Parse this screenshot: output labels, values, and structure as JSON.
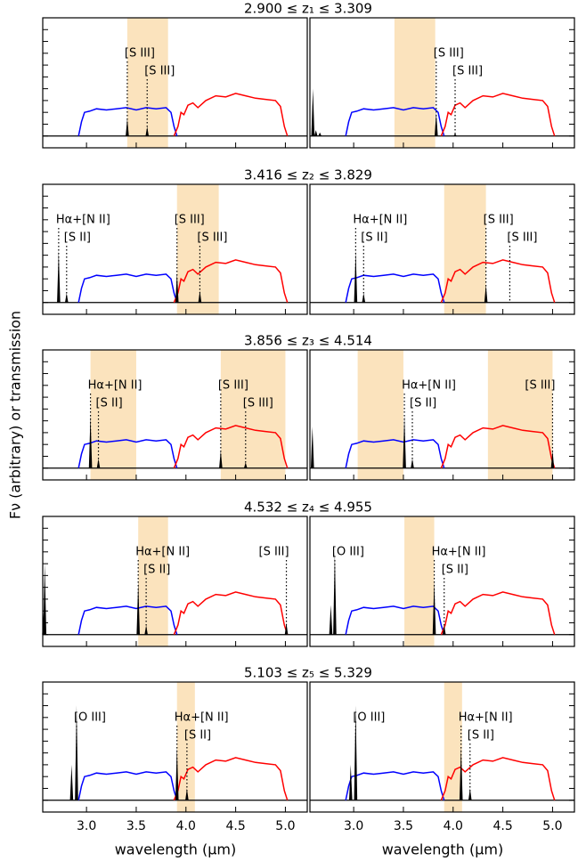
{
  "chart_data": {
    "type": "line",
    "xlabel": "wavelength (μm)",
    "ylabel": "Fν (arbitrary) or transmission",
    "xlim": [
      2.56,
      5.22
    ],
    "ylim": [
      -0.1,
      1.0
    ],
    "xticks": [
      {
        "value": 3,
        "label": "3.0"
      },
      3.5,
      {
        "value": 4,
        "label": "4.0"
      },
      4.5,
      {
        "value": 5,
        "label": "5.0"
      }
    ],
    "yticks": [
      0,
      0.1,
      0.2,
      0.3,
      0.4,
      0.5,
      0.6,
      0.7,
      0.8,
      0.9
    ],
    "band_color": "#fbe3bd",
    "line_color": "#000000",
    "filters": [
      {
        "color": "#0000ff",
        "x": [
          2.92,
          2.95,
          2.98,
          3.03,
          3.1,
          3.2,
          3.3,
          3.4,
          3.5,
          3.6,
          3.7,
          3.8,
          3.85,
          3.88,
          3.91
        ],
        "values": [
          0,
          0.12,
          0.2,
          0.21,
          0.23,
          0.22,
          0.23,
          0.24,
          0.22,
          0.24,
          0.23,
          0.24,
          0.2,
          0.08,
          0
        ]
      },
      {
        "color": "#ff0000",
        "x": [
          3.88,
          3.92,
          3.95,
          3.98,
          4.02,
          4.07,
          4.12,
          4.2,
          4.3,
          4.4,
          4.5,
          4.6,
          4.7,
          4.8,
          4.9,
          4.95,
          4.99,
          5.02
        ],
        "values": [
          0,
          0.08,
          0.2,
          0.18,
          0.26,
          0.28,
          0.24,
          0.3,
          0.34,
          0.33,
          0.36,
          0.34,
          0.32,
          0.31,
          0.3,
          0.25,
          0.08,
          0
        ]
      }
    ],
    "rows": [
      {
        "title": "2.900 ≤ z₁ ≤ 3.309",
        "panels": [
          {
            "bands": [
              [
                3.41,
                3.82
              ]
            ],
            "lines": [
              {
                "label": "[S III]",
                "x": 3.41,
                "height": 0.15
              },
              {
                "label": "[S III]",
                "x": 3.61,
                "height": 0.08
              }
            ]
          },
          {
            "bands": [
              [
                3.41,
                3.82
              ]
            ],
            "lines": [
              {
                "x": 2.59,
                "height": 0.4
              },
              {
                "x": 2.62,
                "height": 0.05
              },
              {
                "x": 2.66,
                "height": 0.03
              },
              {
                "label": "[S III]",
                "x": 3.83,
                "height": 0.2
              },
              {
                "label": "[S III]",
                "x": 4.02,
                "height": 0.02
              }
            ]
          }
        ]
      },
      {
        "title": "3.416 ≤ z₂ ≤ 3.829",
        "panels": [
          {
            "bands": [
              [
                3.91,
                4.33
              ]
            ],
            "lines": [
              {
                "label": "Hα+[N II]",
                "x": 2.72,
                "height": 0.44
              },
              {
                "label": "[S II]",
                "x": 2.8,
                "height": 0.08
              },
              {
                "label": "[S III]",
                "x": 3.91,
                "height": 0.25
              },
              {
                "label": "[S III]",
                "x": 4.14,
                "height": 0.1
              }
            ]
          },
          {
            "bands": [
              [
                3.91,
                4.33
              ]
            ],
            "lines": [
              {
                "label": "Hα+[N II]",
                "x": 3.02,
                "height": 0.44
              },
              {
                "label": "[S II]",
                "x": 3.1,
                "height": 0.08
              },
              {
                "label": "[S III]",
                "x": 4.33,
                "height": 0.15
              },
              {
                "label": "[S III]",
                "x": 4.57,
                "height": 0
              }
            ]
          }
        ]
      },
      {
        "title": "3.856 ≤ z₃ ≤ 4.514",
        "panels": [
          {
            "bands": [
              [
                3.04,
                3.5
              ],
              [
                4.35,
                5.0
              ]
            ],
            "lines": [
              {
                "label": "Hα+[N II]",
                "x": 3.04,
                "height": 0.45
              },
              {
                "label": "[S II]",
                "x": 3.12,
                "height": 0.08
              },
              {
                "label": "[S III]",
                "x": 4.35,
                "height": 0.15
              },
              {
                "label": "[S III]",
                "x": 4.6,
                "height": 0.05
              }
            ]
          },
          {
            "bands": [
              [
                3.04,
                3.5
              ],
              [
                4.35,
                5.0
              ]
            ],
            "lines": [
              {
                "x": 2.585,
                "height": 0.35
              },
              {
                "label": "Hα+[N II]",
                "x": 3.51,
                "height": 0.45
              },
              {
                "label": "[S II]",
                "x": 3.59,
                "height": 0.08
              },
              {
                "label": "[S III]",
                "x": 5.0,
                "height": 0.15
              }
            ]
          }
        ]
      },
      {
        "title": "4.532 ≤ z₄ ≤ 4.955",
        "panels": [
          {
            "bands": [
              [
                3.52,
                3.82
              ]
            ],
            "lines": [
              {
                "x": 2.57,
                "height": 0.2
              },
              {
                "x": 2.58,
                "height": 0.6
              },
              {
                "label": "Hα+[N II]",
                "x": 3.52,
                "height": 0.45
              },
              {
                "label": "[S II]",
                "x": 3.6,
                "height": 0.08
              },
              {
                "label": "[S III]",
                "x": 5.01,
                "height": 0.1
              }
            ]
          },
          {
            "bands": [
              [
                3.51,
                3.81
              ]
            ],
            "lines": [
              {
                "x": 2.77,
                "height": 0.25
              },
              {
                "label": "[O III]",
                "x": 2.81,
                "height": 0.7
              },
              {
                "label": "Hα+[N II]",
                "x": 3.81,
                "height": 0.45
              },
              {
                "label": "[S II]",
                "x": 3.91,
                "height": 0.08
              }
            ]
          }
        ]
      },
      {
        "title": "5.103 ≤ z₅ ≤ 5.329",
        "panels": [
          {
            "bands": [
              [
                3.91,
                4.09
              ]
            ],
            "lines": [
              {
                "x": 2.85,
                "height": 0.3
              },
              {
                "label": "[O III]",
                "x": 2.9,
                "height": 0.8
              },
              {
                "label": "Hα+[N II]",
                "x": 3.91,
                "height": 0.45
              },
              {
                "label": "[S II]",
                "x": 4.01,
                "height": 0.1
              }
            ]
          },
          {
            "bands": [
              [
                3.91,
                4.09
              ]
            ],
            "lines": [
              {
                "x": 2.97,
                "height": 0.3
              },
              {
                "label": "[O III]",
                "x": 3.02,
                "height": 0.8
              },
              {
                "label": "Hα+[N II]",
                "x": 4.08,
                "height": 0.45
              },
              {
                "label": "[S II]",
                "x": 4.17,
                "height": 0.1
              }
            ]
          }
        ]
      }
    ]
  }
}
